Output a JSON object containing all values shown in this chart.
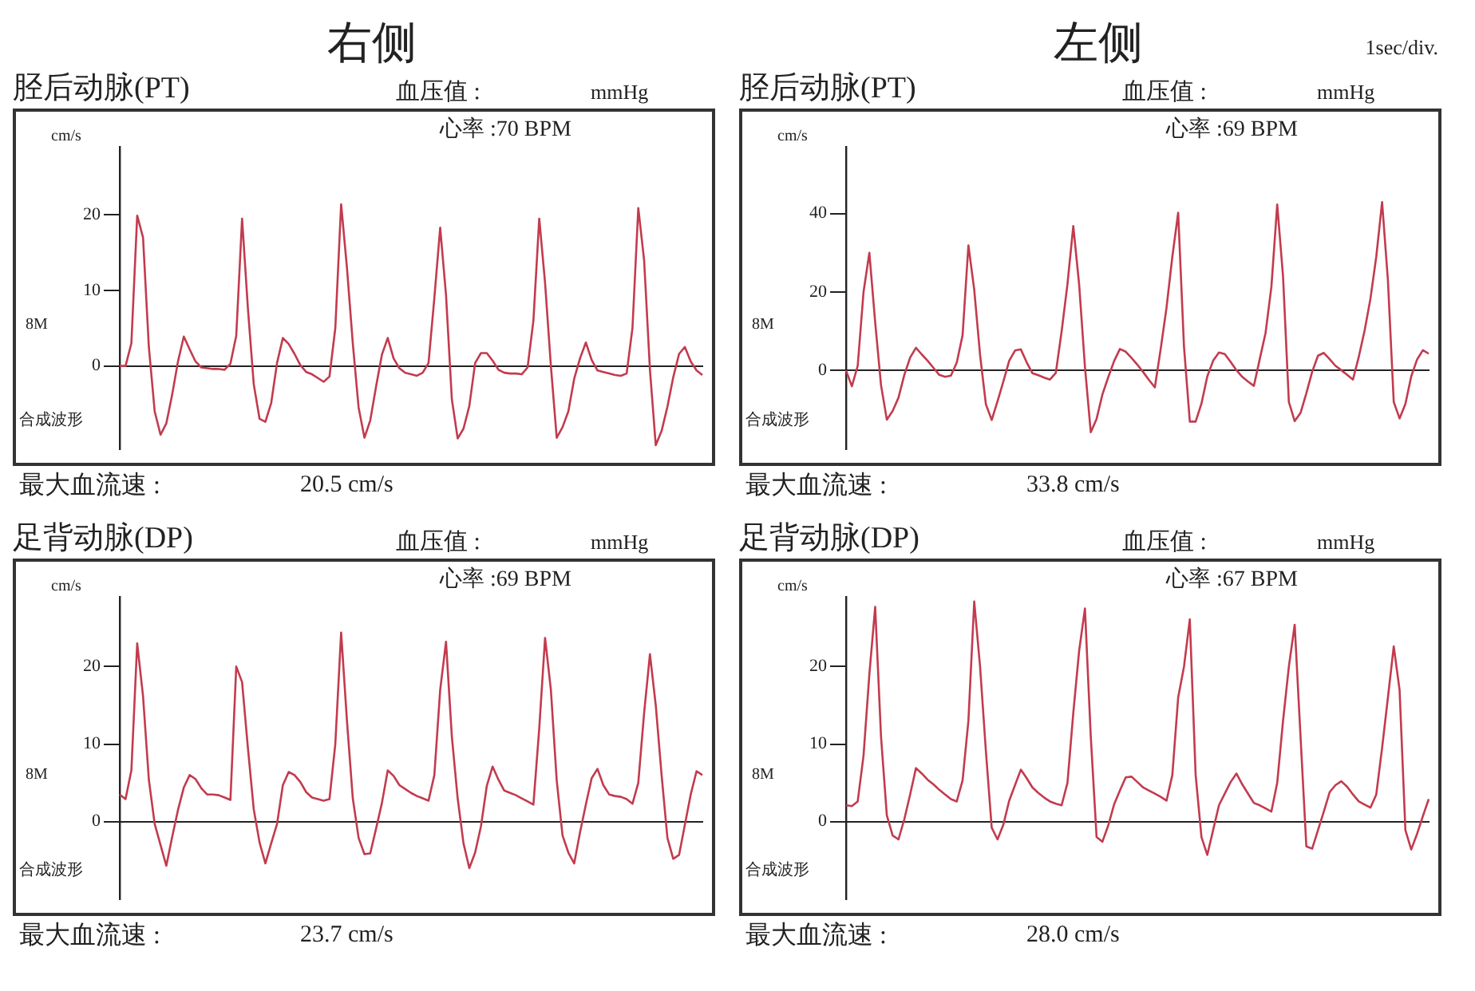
{
  "chart_data": [
    {
      "type": "line",
      "title": "胫后动脉(PT)",
      "ylabel": "cm/s",
      "annotations": [
        "血压值 :",
        "mmHg",
        "心率 :70 BPM",
        "8M",
        "合成波形",
        "最大血流速 :",
        "20.5 cm/s",
        "右侧"
      ],
      "categories": [
        null,
        null,
        null,
        null,
        null,
        null,
        null,
        null,
        null,
        null,
        null,
        null,
        null,
        null,
        null,
        null,
        null,
        null,
        null,
        null,
        null,
        null,
        null,
        null,
        null,
        null,
        null,
        null,
        null,
        null,
        null,
        null,
        null,
        null,
        null,
        null,
        null,
        null,
        null,
        null,
        null,
        null,
        null,
        null,
        null,
        null,
        null,
        null,
        null,
        null,
        null,
        null,
        null,
        null,
        null,
        null,
        null,
        null,
        null,
        null,
        null,
        null,
        null,
        null,
        null,
        null,
        null,
        null,
        null,
        null,
        null,
        null,
        null,
        null,
        null,
        null,
        null,
        null,
        null,
        null,
        null,
        null,
        null,
        null,
        null,
        null,
        null,
        null,
        null,
        null,
        null,
        null,
        null,
        null,
        null,
        null,
        null,
        null,
        null,
        null,
        null
      ],
      "ylim": [
        -11,
        29
      ],
      "yticks": [
        0,
        10,
        20
      ],
      "tick_labels": "y",
      "series": [
        {
          "color": "#c23b4e",
          "values": [
            0,
            0,
            3,
            19.9,
            17,
            2.5,
            -6,
            -9.1,
            -7.6,
            -3.8,
            0.6,
            3.9,
            2.2,
            0.6,
            -0.2,
            -0.3,
            -0.4,
            -0.4,
            -0.5,
            0.3,
            4,
            19.5,
            7.6,
            -2.4,
            -7,
            -7.4,
            -4.9,
            0.4,
            3.7,
            2.9,
            1.6,
            0.1,
            -0.8,
            -1.1,
            -1.6,
            -2.1,
            -1.4,
            5,
            21.4,
            13,
            3,
            -5.5,
            -9.5,
            -7.2,
            -2.7,
            1.5,
            3.7,
            1,
            -0.3,
            -0.9,
            -1.1,
            -1.3,
            -0.9,
            0.4,
            9,
            18.3,
            9.4,
            -4.4,
            -9.6,
            -8.3,
            -5.3,
            0.4,
            1.7,
            1.7,
            0.7,
            -0.5,
            -0.9,
            -1,
            -1,
            -1.1,
            -0.2,
            6,
            19.5,
            11,
            0,
            -9.5,
            -8.1,
            -6,
            -1.7,
            1,
            3.1,
            0.8,
            -0.6,
            -0.8,
            -1,
            -1.2,
            -1.3,
            -1,
            5,
            20.9,
            14,
            -0.5,
            -10.5,
            -8.6,
            -5.4,
            -1.5,
            1.6,
            2.5,
            0.6,
            -0.6,
            -1.2
          ]
        }
      ]
    },
    {
      "type": "line",
      "title": "胫后动脉(PT)",
      "ylabel": "cm/s",
      "annotations": [
        "血压值 :",
        "mmHg",
        "心率 :69 BPM",
        "8M",
        "合成波形",
        "最大血流速 :",
        "33.8 cm/s",
        "左侧",
        "1sec/div."
      ],
      "categories": [
        null,
        null,
        null,
        null,
        null,
        null,
        null,
        null,
        null,
        null,
        null,
        null,
        null,
        null,
        null,
        null,
        null,
        null,
        null,
        null,
        null,
        null,
        null,
        null,
        null,
        null,
        null,
        null,
        null,
        null,
        null,
        null,
        null,
        null,
        null,
        null,
        null,
        null,
        null,
        null,
        null,
        null,
        null,
        null,
        null,
        null,
        null,
        null,
        null,
        null,
        null,
        null,
        null,
        null,
        null,
        null,
        null,
        null,
        null,
        null,
        null,
        null,
        null,
        null,
        null,
        null,
        null,
        null,
        null,
        null,
        null,
        null,
        null,
        null,
        null,
        null,
        null,
        null,
        null,
        null,
        null,
        null,
        null,
        null,
        null,
        null,
        null,
        null,
        null,
        null,
        null,
        null,
        null,
        null,
        null,
        null,
        null,
        null,
        null,
        null,
        null
      ],
      "ylim": [
        -20,
        57
      ],
      "yticks": [
        0,
        20,
        40
      ],
      "tick_labels": "y",
      "series": [
        {
          "color": "#c23b4e",
          "values": [
            0,
            -4,
            1.2,
            20,
            30,
            12.3,
            -3.7,
            -12.5,
            -10.3,
            -6.9,
            -1.1,
            3.3,
            5.8,
            4.1,
            2.5,
            0.7,
            -1.1,
            -1.6,
            -1.3,
            2,
            9,
            31.9,
            20.6,
            4,
            -8.6,
            -12.6,
            -7.8,
            -2.8,
            2.5,
            5.1,
            5.4,
            2.1,
            -0.7,
            -1.2,
            -1.8,
            -2.3,
            -0.6,
            10,
            22,
            36.8,
            22,
            1,
            -15.7,
            -12.3,
            -6.1,
            -1.7,
            2.4,
            5.5,
            4.8,
            3.2,
            1.5,
            -0.4,
            -2.4,
            -4.3,
            5.5,
            16,
            29,
            40.2,
            6.1,
            -13,
            -13,
            -8.4,
            -1.5,
            2.5,
            4.6,
            4.2,
            2.2,
            0.1,
            -1.6,
            -2.8,
            -3.9,
            2.9,
            9.6,
            21.3,
            42.3,
            24,
            -8,
            -12.9,
            -10.8,
            -5.8,
            -0.3,
            3.8,
            4.5,
            2.9,
            1.2,
            0.1,
            -1.1,
            -2.3,
            3.5,
            10.2,
            18.3,
            29,
            42.9,
            23,
            -8,
            -12.2,
            -8.5,
            -1.5,
            2.8,
            5.2,
            4.3
          ]
        }
      ]
    },
    {
      "type": "line",
      "title": "足背动脉(DP)",
      "ylabel": "cm/s",
      "annotations": [
        "血压值 :",
        "mmHg",
        "心率 :69 BPM",
        "8M",
        "合成波形",
        "最大血流速 :",
        "23.7 cm/s"
      ],
      "categories": [
        null,
        null,
        null,
        null,
        null,
        null,
        null,
        null,
        null,
        null,
        null,
        null,
        null,
        null,
        null,
        null,
        null,
        null,
        null,
        null,
        null,
        null,
        null,
        null,
        null,
        null,
        null,
        null,
        null,
        null,
        null,
        null,
        null,
        null,
        null,
        null,
        null,
        null,
        null,
        null,
        null,
        null,
        null,
        null,
        null,
        null,
        null,
        null,
        null,
        null,
        null,
        null,
        null,
        null,
        null,
        null,
        null,
        null,
        null,
        null,
        null,
        null,
        null,
        null,
        null,
        null,
        null,
        null,
        null,
        null,
        null,
        null,
        null,
        null,
        null,
        null,
        null,
        null,
        null,
        null,
        null,
        null,
        null,
        null,
        null,
        null,
        null,
        null,
        null,
        null,
        null,
        null,
        null,
        null,
        null,
        null,
        null,
        null,
        null,
        null,
        null
      ],
      "ylim": [
        -10,
        29
      ],
      "yticks": [
        0,
        10,
        20
      ],
      "tick_labels": "y",
      "series": [
        {
          "color": "#c23b4e",
          "values": [
            3.5,
            2.9,
            6.6,
            23,
            16.2,
            5.4,
            -0.3,
            -3,
            -5.7,
            -2,
            1.5,
            4.4,
            6,
            5.5,
            4.3,
            3.5,
            3.5,
            3.4,
            3.1,
            2.8,
            20,
            18,
            9.5,
            1.6,
            -2.7,
            -5.4,
            -2.8,
            -0.3,
            4.7,
            6.4,
            6,
            5.1,
            3.8,
            3.1,
            2.9,
            2.7,
            2.9,
            10,
            24.4,
            13,
            3,
            -2.1,
            -4.2,
            -4.1,
            -0.9,
            2.4,
            6.6,
            5.9,
            4.7,
            4.2,
            3.7,
            3.3,
            3,
            2.7,
            6,
            17,
            23.2,
            11,
            3,
            -2.8,
            -6,
            -4,
            -0.6,
            4.6,
            7.1,
            5.4,
            4,
            3.7,
            3.4,
            3,
            2.6,
            2.2,
            12,
            23.7,
            17,
            5.3,
            -1.8,
            -4,
            -5.4,
            -1.4,
            2.2,
            5.6,
            6.8,
            4.7,
            3.5,
            3.3,
            3.2,
            2.9,
            2.3,
            5,
            14,
            21.6,
            15,
            6,
            -2.1,
            -4.8,
            -4.3,
            -0.4,
            3.5,
            6.5,
            6
          ]
        }
      ]
    },
    {
      "type": "line",
      "title": "足背动脉(DP)",
      "ylabel": "cm/s",
      "annotations": [
        "血压值 :",
        "mmHg",
        "心率 :67 BPM",
        "8M",
        "合成波形",
        "最大血流速 :",
        "28.0 cm/s"
      ],
      "categories": [
        null,
        null,
        null,
        null,
        null,
        null,
        null,
        null,
        null,
        null,
        null,
        null,
        null,
        null,
        null,
        null,
        null,
        null,
        null,
        null,
        null,
        null,
        null,
        null,
        null,
        null,
        null,
        null,
        null,
        null,
        null,
        null,
        null,
        null,
        null,
        null,
        null,
        null,
        null,
        null,
        null,
        null,
        null,
        null,
        null,
        null,
        null,
        null,
        null,
        null,
        null,
        null,
        null,
        null,
        null,
        null,
        null,
        null,
        null,
        null,
        null,
        null,
        null,
        null,
        null,
        null,
        null,
        null,
        null,
        null,
        null,
        null,
        null,
        null,
        null,
        null,
        null,
        null,
        null,
        null,
        null,
        null,
        null,
        null,
        null,
        null,
        null,
        null,
        null,
        null,
        null,
        null,
        null,
        null,
        null,
        null,
        null,
        null,
        null,
        null,
        null
      ],
      "ylim": [
        -10,
        29
      ],
      "yticks": [
        0,
        10,
        20
      ],
      "tick_labels": "y",
      "series": [
        {
          "color": "#c23b4e",
          "values": [
            2.1,
            2,
            2.6,
            8.5,
            19,
            27.7,
            11,
            0.8,
            -1.8,
            -2.3,
            0.3,
            3.5,
            6.9,
            6.2,
            5.4,
            4.8,
            4.1,
            3.5,
            2.9,
            2.6,
            5.3,
            13,
            28.4,
            20,
            9.1,
            -0.8,
            -2.3,
            -0.4,
            2.7,
            4.7,
            6.7,
            5.6,
            4.4,
            3.7,
            3.1,
            2.6,
            2.3,
            2.1,
            5,
            14,
            22,
            27.5,
            11,
            -2,
            -2.6,
            -0.5,
            2.2,
            4,
            5.7,
            5.8,
            5.1,
            4.4,
            4,
            3.6,
            3.2,
            2.7,
            6,
            16,
            20,
            26.1,
            6,
            -2,
            -4.3,
            -1.1,
            2.1,
            3.6,
            5.1,
            6.2,
            4.8,
            3.6,
            2.4,
            2.1,
            1.7,
            1.3,
            5,
            13,
            20,
            25.4,
            11,
            -3.2,
            -3.5,
            -1.1,
            1.3,
            3.8,
            4.7,
            5.2,
            4.5,
            3.5,
            2.6,
            2.2,
            1.8,
            3.5,
            9.5,
            16,
            22.6,
            17,
            -1.1,
            -3.6,
            -1.6,
            0.7,
            2.9
          ]
        }
      ]
    }
  ]
}
